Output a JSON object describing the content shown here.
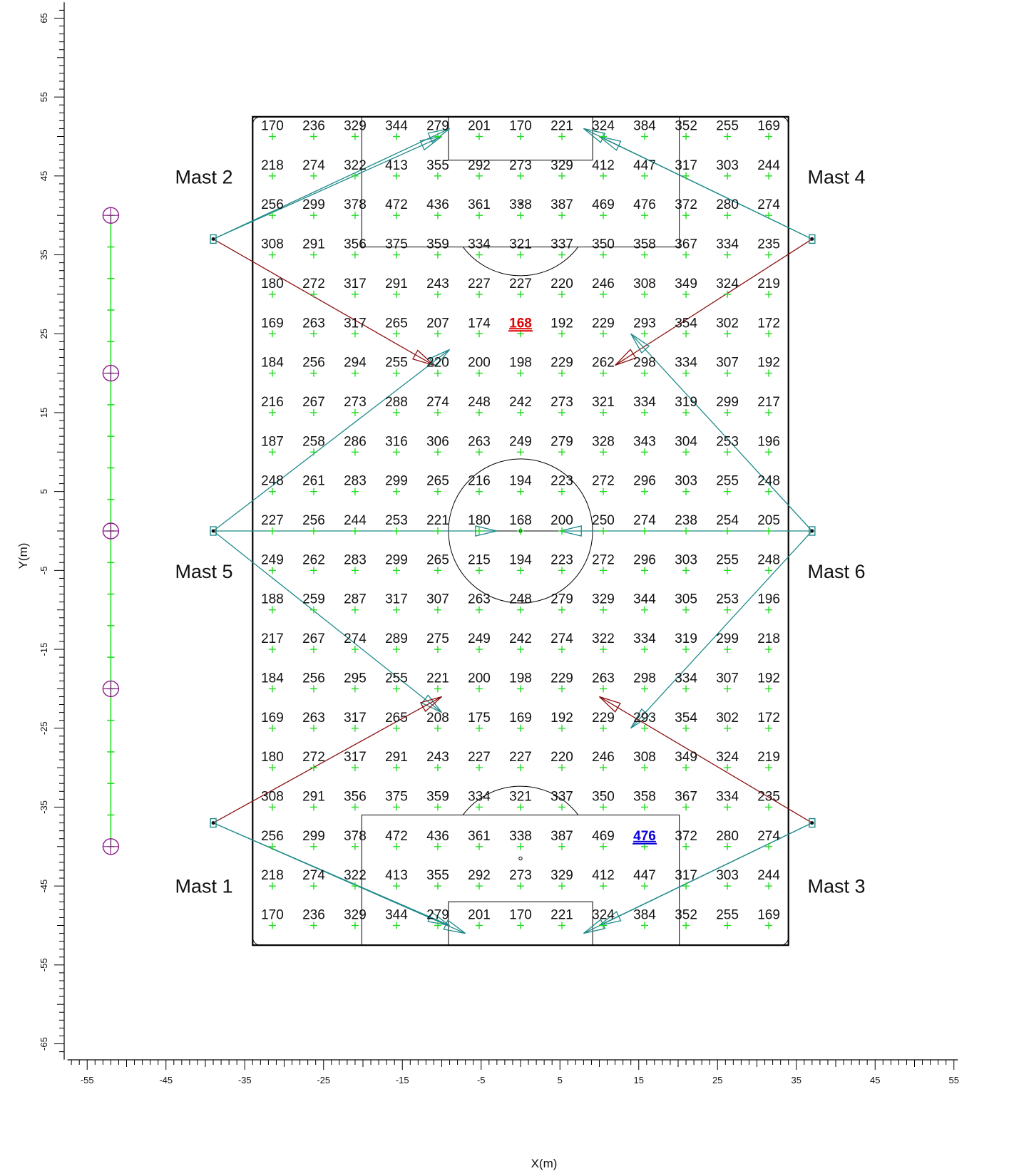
{
  "axes": {
    "xlabel": "X(m)",
    "ylabel": "Y(m)",
    "xlim": [
      -58,
      55
    ],
    "ylim": [
      -67,
      67
    ],
    "x_tick_labels": [
      "-55",
      "-45",
      "-35",
      "-25",
      "-15",
      "-5",
      "5",
      "15",
      "25",
      "35",
      "45",
      "55"
    ],
    "y_tick_labels": [
      "65",
      "55",
      "45",
      "35",
      "25",
      "15",
      "5",
      "-5",
      "-15",
      "-25",
      "-35",
      "-45",
      "-55",
      "-65"
    ]
  },
  "grid": {
    "x": [
      -31.5,
      -26.25,
      -21,
      -15.75,
      -10.5,
      -5.25,
      0,
      5.25,
      10.5,
      15.75,
      21,
      26.25,
      31.5
    ],
    "y": [
      50,
      45,
      40,
      35,
      30,
      25,
      20,
      15,
      10,
      5,
      0,
      -5,
      -10,
      -15,
      -20,
      -25,
      -30,
      -35,
      -40,
      -45,
      -50
    ],
    "values": [
      [
        170,
        236,
        329,
        344,
        279,
        201,
        170,
        221,
        324,
        384,
        352,
        255,
        169
      ],
      [
        218,
        274,
        322,
        413,
        355,
        292,
        273,
        329,
        412,
        447,
        317,
        303,
        244
      ],
      [
        256,
        299,
        378,
        472,
        436,
        361,
        338,
        387,
        469,
        476,
        372,
        280,
        274
      ],
      [
        308,
        291,
        356,
        375,
        359,
        334,
        321,
        337,
        350,
        358,
        367,
        334,
        235
      ],
      [
        180,
        272,
        317,
        291,
        243,
        227,
        227,
        220,
        246,
        308,
        349,
        324,
        219
      ],
      [
        169,
        263,
        317,
        265,
        207,
        174,
        168,
        192,
        229,
        293,
        354,
        302,
        172
      ],
      [
        184,
        256,
        294,
        255,
        220,
        200,
        198,
        229,
        262,
        298,
        334,
        307,
        192
      ],
      [
        216,
        267,
        273,
        288,
        274,
        248,
        242,
        273,
        321,
        334,
        319,
        299,
        217
      ],
      [
        187,
        258,
        286,
        316,
        306,
        263,
        249,
        279,
        328,
        343,
        304,
        253,
        196
      ],
      [
        248,
        261,
        283,
        299,
        265,
        216,
        194,
        223,
        272,
        296,
        303,
        255,
        248
      ],
      [
        227,
        256,
        244,
        253,
        221,
        180,
        168,
        200,
        250,
        274,
        238,
        254,
        205
      ],
      [
        249,
        262,
        283,
        299,
        265,
        215,
        194,
        223,
        272,
        296,
        303,
        255,
        248
      ],
      [
        188,
        259,
        287,
        317,
        307,
        263,
        248,
        279,
        329,
        344,
        305,
        253,
        196
      ],
      [
        217,
        267,
        274,
        289,
        275,
        249,
        242,
        274,
        322,
        334,
        319,
        299,
        218
      ],
      [
        184,
        256,
        295,
        255,
        221,
        200,
        198,
        229,
        263,
        298,
        334,
        307,
        192
      ],
      [
        169,
        263,
        317,
        265,
        208,
        175,
        169,
        192,
        229,
        293,
        354,
        302,
        172
      ],
      [
        180,
        272,
        317,
        291,
        243,
        227,
        227,
        220,
        246,
        308,
        349,
        324,
        219
      ],
      [
        308,
        291,
        356,
        375,
        359,
        334,
        321,
        337,
        350,
        358,
        367,
        334,
        235
      ],
      [
        256,
        299,
        378,
        472,
        436,
        361,
        338,
        387,
        469,
        476,
        372,
        280,
        274
      ],
      [
        218,
        274,
        322,
        413,
        355,
        292,
        273,
        329,
        412,
        447,
        317,
        303,
        244
      ],
      [
        170,
        236,
        329,
        344,
        279,
        201,
        170,
        221,
        324,
        384,
        352,
        255,
        169
      ]
    ],
    "min_highlight": {
      "row": 5,
      "col": 6
    },
    "max_highlight": {
      "row": 18,
      "col": 9
    }
  },
  "masts": [
    {
      "label": "Mast 2",
      "x": -39,
      "y": 37
    },
    {
      "label": "Mast 4",
      "x": 37,
      "y": 37
    },
    {
      "label": "Mast 5",
      "x": -39,
      "y": 0
    },
    {
      "label": "Mast 6",
      "x": 37,
      "y": 0
    },
    {
      "label": "Mast 1",
      "x": -39,
      "y": -37
    },
    {
      "label": "Mast 3",
      "x": 37,
      "y": -37
    }
  ],
  "aim_lines": [
    {
      "from": [
        -39,
        37
      ],
      "to": [
        -9,
        51
      ],
      "kind": "teal"
    },
    {
      "from": [
        -39,
        37
      ],
      "to": [
        -10,
        50
      ],
      "kind": "teal"
    },
    {
      "from": [
        -39,
        37
      ],
      "to": [
        -11,
        21
      ],
      "kind": "red"
    },
    {
      "from": [
        37,
        37
      ],
      "to": [
        8,
        51
      ],
      "kind": "teal"
    },
    {
      "from": [
        37,
        37
      ],
      "to": [
        10,
        50
      ],
      "kind": "teal"
    },
    {
      "from": [
        37,
        37
      ],
      "to": [
        12,
        21
      ],
      "kind": "red"
    },
    {
      "from": [
        -39,
        0
      ],
      "to": [
        -9,
        23
      ],
      "kind": "teal"
    },
    {
      "from": [
        -39,
        0
      ],
      "to": [
        -3,
        0
      ],
      "kind": "teal"
    },
    {
      "from": [
        -39,
        0
      ],
      "to": [
        -10,
        -23
      ],
      "kind": "teal"
    },
    {
      "from": [
        37,
        0
      ],
      "to": [
        14,
        25
      ],
      "kind": "teal"
    },
    {
      "from": [
        37,
        0
      ],
      "to": [
        5,
        0
      ],
      "kind": "teal"
    },
    {
      "from": [
        37,
        0
      ],
      "to": [
        14,
        -25
      ],
      "kind": "teal"
    },
    {
      "from": [
        -39,
        -37
      ],
      "to": [
        -10,
        -21
      ],
      "kind": "red"
    },
    {
      "from": [
        -39,
        -37
      ],
      "to": [
        -7,
        -51
      ],
      "kind": "teal"
    },
    {
      "from": [
        -39,
        -37
      ],
      "to": [
        -9,
        -50
      ],
      "kind": "teal"
    },
    {
      "from": [
        37,
        -37
      ],
      "to": [
        10,
        -21
      ],
      "kind": "red"
    },
    {
      "from": [
        37,
        -37
      ],
      "to": [
        8,
        -51
      ],
      "kind": "teal"
    },
    {
      "from": [
        37,
        -37
      ],
      "to": [
        10,
        -50
      ],
      "kind": "teal"
    }
  ],
  "calc_line": {
    "x": -52,
    "y_from": -40,
    "y_to": 40,
    "major_y": [
      40,
      20,
      0,
      -20,
      -40
    ]
  },
  "colors": {
    "grid_marker": "#22dd22",
    "aim_teal": "#1f8a8a",
    "aim_red": "#8b1010",
    "calc_line": "#22dd22",
    "calc_marker": "#8b1a8b",
    "min_value": "#e00000",
    "max_value": "#0a00d6"
  }
}
